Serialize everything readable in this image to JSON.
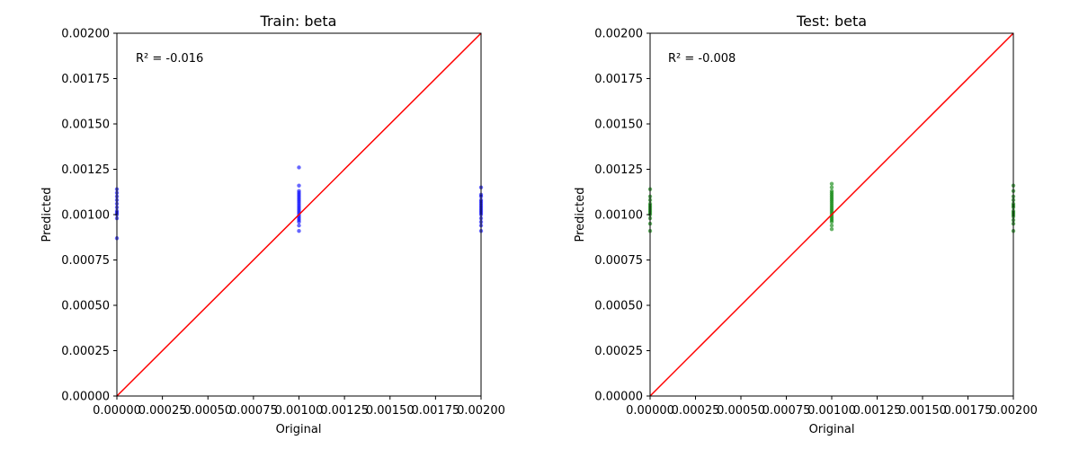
{
  "colors": {
    "identity_line": "#ff0000",
    "train_points": "#0000ff",
    "test_points": "#008000"
  },
  "chart_data": [
    {
      "type": "scatter",
      "title": "Train: beta",
      "xlabel": "Original",
      "ylabel": "Predicted",
      "xlim": [
        0,
        0.002
      ],
      "ylim": [
        0,
        0.002
      ],
      "xticks": [
        "0.00000",
        "0.00025",
        "0.00050",
        "0.00075",
        "0.00100",
        "0.00125",
        "0.00150",
        "0.00175",
        "0.00200"
      ],
      "yticks": [
        "0.00000",
        "0.00025",
        "0.00050",
        "0.00075",
        "0.00100",
        "0.00125",
        "0.00150",
        "0.00175",
        "0.00200"
      ],
      "annotation": "R² = -0.016",
      "reference_line": [
        [
          0,
          0
        ],
        [
          0.002,
          0.002
        ]
      ],
      "point_color": "#0000ff",
      "grid": false,
      "points": [
        [
          0,
          0.00087
        ],
        [
          0,
          0.00098
        ],
        [
          0,
          0.001
        ],
        [
          0,
          0.00101
        ],
        [
          0,
          0.00102
        ],
        [
          0,
          0.00104
        ],
        [
          0,
          0.00106
        ],
        [
          0,
          0.00108
        ],
        [
          0,
          0.0011
        ],
        [
          0,
          0.00112
        ],
        [
          0,
          0.00114
        ],
        [
          0.001,
          0.00091
        ],
        [
          0.001,
          0.00094
        ],
        [
          0.001,
          0.00096
        ],
        [
          0.001,
          0.00097
        ],
        [
          0.001,
          0.00098
        ],
        [
          0.001,
          0.00099
        ],
        [
          0.001,
          0.001
        ],
        [
          0.001,
          0.00101
        ],
        [
          0.001,
          0.00102
        ],
        [
          0.001,
          0.00103
        ],
        [
          0.001,
          0.00104
        ],
        [
          0.001,
          0.00105
        ],
        [
          0.001,
          0.00106
        ],
        [
          0.001,
          0.00107
        ],
        [
          0.001,
          0.00108
        ],
        [
          0.001,
          0.00109
        ],
        [
          0.001,
          0.0011
        ],
        [
          0.001,
          0.00111
        ],
        [
          0.001,
          0.00112
        ],
        [
          0.001,
          0.00113
        ],
        [
          0.001,
          0.00116
        ],
        [
          0.001,
          0.00126
        ],
        [
          0.002,
          0.00091
        ],
        [
          0.002,
          0.00094
        ],
        [
          0.002,
          0.00096
        ],
        [
          0.002,
          0.00098
        ],
        [
          0.002,
          0.001
        ],
        [
          0.002,
          0.00101
        ],
        [
          0.002,
          0.00102
        ],
        [
          0.002,
          0.00103
        ],
        [
          0.002,
          0.00104
        ],
        [
          0.002,
          0.00105
        ],
        [
          0.002,
          0.00106
        ],
        [
          0.002,
          0.00107
        ],
        [
          0.002,
          0.00108
        ],
        [
          0.002,
          0.0011
        ],
        [
          0.002,
          0.00111
        ],
        [
          0.002,
          0.00115
        ]
      ]
    },
    {
      "type": "scatter",
      "title": "Test: beta",
      "xlabel": "Original",
      "ylabel": "Predicted",
      "xlim": [
        0,
        0.002
      ],
      "ylim": [
        0,
        0.002
      ],
      "xticks": [
        "0.00000",
        "0.00025",
        "0.00050",
        "0.00075",
        "0.00100",
        "0.00125",
        "0.00150",
        "0.00175",
        "0.00200"
      ],
      "yticks": [
        "0.00000",
        "0.00025",
        "0.00050",
        "0.00075",
        "0.00100",
        "0.00125",
        "0.00150",
        "0.00175",
        "0.00200"
      ],
      "annotation": "R² = -0.008",
      "reference_line": [
        [
          0,
          0
        ],
        [
          0.002,
          0.002
        ]
      ],
      "point_color": "#008000",
      "grid": false,
      "points": [
        [
          0,
          0.00091
        ],
        [
          0,
          0.00095
        ],
        [
          0,
          0.00098
        ],
        [
          0,
          0.001
        ],
        [
          0,
          0.00101
        ],
        [
          0,
          0.00102
        ],
        [
          0,
          0.00103
        ],
        [
          0,
          0.00104
        ],
        [
          0,
          0.00105
        ],
        [
          0,
          0.00106
        ],
        [
          0,
          0.00108
        ],
        [
          0,
          0.0011
        ],
        [
          0,
          0.00114
        ],
        [
          0.001,
          0.00092
        ],
        [
          0.001,
          0.00094
        ],
        [
          0.001,
          0.00096
        ],
        [
          0.001,
          0.00097
        ],
        [
          0.001,
          0.00098
        ],
        [
          0.001,
          0.00099
        ],
        [
          0.001,
          0.001
        ],
        [
          0.001,
          0.00101
        ],
        [
          0.001,
          0.00102
        ],
        [
          0.001,
          0.00103
        ],
        [
          0.001,
          0.00104
        ],
        [
          0.001,
          0.00105
        ],
        [
          0.001,
          0.00106
        ],
        [
          0.001,
          0.00107
        ],
        [
          0.001,
          0.00108
        ],
        [
          0.001,
          0.00109
        ],
        [
          0.001,
          0.0011
        ],
        [
          0.001,
          0.00111
        ],
        [
          0.001,
          0.00112
        ],
        [
          0.001,
          0.00113
        ],
        [
          0.001,
          0.00115
        ],
        [
          0.001,
          0.00117
        ],
        [
          0.002,
          0.00091
        ],
        [
          0.002,
          0.00095
        ],
        [
          0.002,
          0.00097
        ],
        [
          0.002,
          0.00099
        ],
        [
          0.002,
          0.001
        ],
        [
          0.002,
          0.00101
        ],
        [
          0.002,
          0.00102
        ],
        [
          0.002,
          0.00104
        ],
        [
          0.002,
          0.00105
        ],
        [
          0.002,
          0.00106
        ],
        [
          0.002,
          0.00108
        ],
        [
          0.002,
          0.0011
        ],
        [
          0.002,
          0.00113
        ],
        [
          0.002,
          0.00116
        ]
      ]
    }
  ]
}
